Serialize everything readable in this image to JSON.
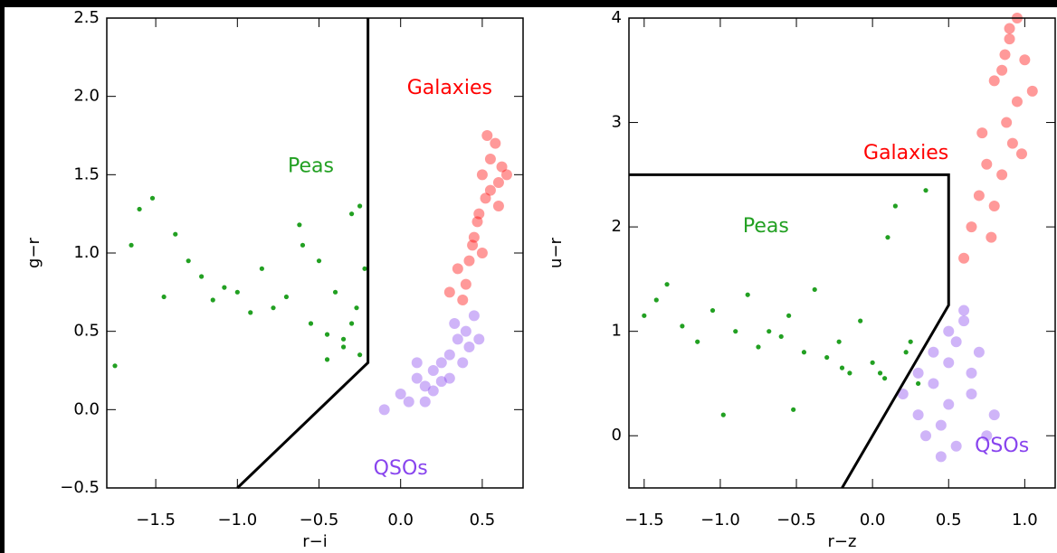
{
  "chart_data": [
    {
      "type": "scatter",
      "xlabel": "r−i",
      "ylabel": "g−r",
      "xlim": [
        -1.8,
        0.75
      ],
      "ylim": [
        -0.5,
        2.5
      ],
      "xticks": [
        {
          "value": -1.5,
          "label": "−1.5"
        },
        {
          "value": -1.0,
          "label": "−1.0"
        },
        {
          "value": -0.5,
          "label": "−0.5"
        },
        {
          "value": 0,
          "label": "0.0"
        },
        0.5
      ],
      "yticks": [
        {
          "value": -0.5,
          "label": "−0.5"
        },
        {
          "value": 0,
          "label": "0.0"
        },
        0.5,
        {
          "value": 1,
          "label": "1.0"
        },
        1.5,
        {
          "value": 2,
          "label": "2.0"
        },
        2.5
      ],
      "series": [
        {
          "color": "#22a022",
          "x": [
            -1.75,
            -1.65,
            -1.6,
            -1.52,
            -1.45,
            -1.38,
            -1.3,
            -1.22,
            -1.15,
            -1.08,
            -1.0,
            -0.92,
            -0.85,
            -0.78,
            -0.7,
            -0.62,
            -0.55,
            -0.5,
            -0.45,
            -0.4,
            -0.35,
            -0.3,
            -0.27,
            -0.25,
            -0.22,
            -0.3,
            -0.45,
            -0.6,
            -0.25,
            -0.35
          ],
          "values": [
            0.28,
            1.05,
            1.28,
            1.35,
            0.72,
            1.12,
            0.95,
            0.85,
            0.7,
            0.78,
            0.75,
            0.62,
            0.9,
            0.65,
            0.72,
            1.18,
            0.55,
            0.95,
            0.48,
            0.75,
            0.4,
            1.25,
            0.65,
            0.35,
            0.9,
            0.55,
            0.32,
            1.05,
            1.3,
            0.45
          ]
        },
        {
          "color": "#ff0000",
          "x": [
            0.5,
            0.55,
            0.6,
            0.52,
            0.58,
            0.48,
            0.62,
            0.45,
            0.5,
            0.42,
            0.55,
            0.4,
            0.38,
            0.47,
            0.35,
            0.6,
            0.65,
            0.53,
            0.44,
            0.3
          ],
          "values": [
            1.5,
            1.6,
            1.45,
            1.35,
            1.7,
            1.25,
            1.55,
            1.1,
            1.0,
            0.95,
            1.4,
            0.8,
            0.7,
            1.2,
            0.9,
            1.3,
            1.5,
            1.75,
            1.05,
            0.75
          ]
        },
        {
          "color": "#8844ee",
          "x": [
            -0.1,
            0.0,
            0.05,
            0.1,
            0.15,
            0.2,
            0.25,
            0.3,
            0.35,
            0.4,
            0.45,
            0.3,
            0.2,
            0.1,
            0.38,
            0.42,
            0.25,
            0.48,
            0.15,
            0.33
          ],
          "values": [
            0.0,
            0.1,
            0.05,
            0.2,
            0.15,
            0.25,
            0.3,
            0.35,
            0.45,
            0.5,
            0.6,
            0.2,
            0.12,
            0.3,
            0.3,
            0.4,
            0.18,
            0.45,
            0.05,
            0.55
          ]
        }
      ],
      "lines": [
        {
          "color": "#000000",
          "x": [
            -0.2,
            -0.2,
            -1.0
          ],
          "y": [
            2.5,
            0.3,
            -0.5
          ]
        }
      ],
      "annotations": [
        {
          "text": "Galaxies",
          "x": 0.3,
          "y": 2.05,
          "color": "#ff0000"
        },
        {
          "text": "Peas",
          "x": -0.55,
          "y": 1.55,
          "color": "#22a022"
        },
        {
          "text": "QSOs",
          "x": 0.0,
          "y": -0.38,
          "color": "#8844ee"
        }
      ]
    },
    {
      "type": "scatter",
      "xlabel": "r−z",
      "ylabel": "u−r",
      "xlim": [
        -1.6,
        1.2
      ],
      "ylim": [
        -0.5,
        4.0
      ],
      "xticks": [
        {
          "value": -1.5,
          "label": "−1.5"
        },
        {
          "value": -1.0,
          "label": "−1.0"
        },
        {
          "value": -0.5,
          "label": "−0.5"
        },
        {
          "value": 0,
          "label": "0.0"
        },
        0.5,
        {
          "value": 1,
          "label": "1.0"
        }
      ],
      "yticks": [
        0,
        1,
        2,
        3,
        4
      ],
      "series": [
        {
          "color": "#22a022",
          "x": [
            -1.5,
            -1.42,
            -1.35,
            -1.25,
            -1.15,
            -1.05,
            -0.98,
            -0.9,
            -0.82,
            -0.75,
            -0.68,
            -0.6,
            -0.52,
            -0.45,
            -0.38,
            -0.3,
            -0.22,
            -0.15,
            -0.08,
            0.0,
            0.08,
            0.15,
            0.22,
            0.3,
            0.35,
            0.1,
            -0.2,
            0.25,
            -0.55,
            0.05
          ],
          "values": [
            1.15,
            1.3,
            1.45,
            1.05,
            0.9,
            1.2,
            0.2,
            1.0,
            1.35,
            0.85,
            1.0,
            0.95,
            0.25,
            0.8,
            1.4,
            0.75,
            0.9,
            0.6,
            1.1,
            0.7,
            0.55,
            2.2,
            0.8,
            0.5,
            2.35,
            1.9,
            0.65,
            0.9,
            1.15,
            0.6
          ]
        },
        {
          "color": "#ff0000",
          "x": [
            0.85,
            0.9,
            0.95,
            0.88,
            0.8,
            0.92,
            1.0,
            0.75,
            0.7,
            0.85,
            0.95,
            0.65,
            0.9,
            0.8,
            0.6,
            1.05,
            0.78,
            0.98,
            0.72,
            0.87
          ],
          "values": [
            3.5,
            3.8,
            3.2,
            3.0,
            3.4,
            2.8,
            3.6,
            2.6,
            2.3,
            2.5,
            4.0,
            2.0,
            3.9,
            2.2,
            1.7,
            3.3,
            1.9,
            2.7,
            2.9,
            3.65
          ]
        },
        {
          "color": "#8844ee",
          "x": [
            0.2,
            0.3,
            0.4,
            0.5,
            0.55,
            0.6,
            0.65,
            0.45,
            0.35,
            0.5,
            0.7,
            0.8,
            0.55,
            0.6,
            0.4,
            0.3,
            0.75,
            0.65,
            0.5,
            0.45
          ],
          "values": [
            0.4,
            0.2,
            0.5,
            0.7,
            0.9,
            1.1,
            0.6,
            0.1,
            0.0,
            0.3,
            0.8,
            0.2,
            -0.1,
            1.2,
            0.8,
            0.6,
            0.0,
            0.4,
            1.0,
            -0.2
          ]
        }
      ],
      "lines": [
        {
          "color": "#000000",
          "x": [
            -1.6,
            0.5,
            0.5,
            -0.2
          ],
          "y": [
            2.5,
            2.5,
            1.25,
            -0.5
          ]
        }
      ],
      "annotations": [
        {
          "text": "Galaxies",
          "x": 0.22,
          "y": 2.7,
          "color": "#ff0000"
        },
        {
          "text": "Peas",
          "x": -0.7,
          "y": 2.0,
          "color": "#22a022"
        },
        {
          "text": "QSOs",
          "x": 0.85,
          "y": -0.1,
          "color": "#8844ee"
        }
      ]
    }
  ]
}
